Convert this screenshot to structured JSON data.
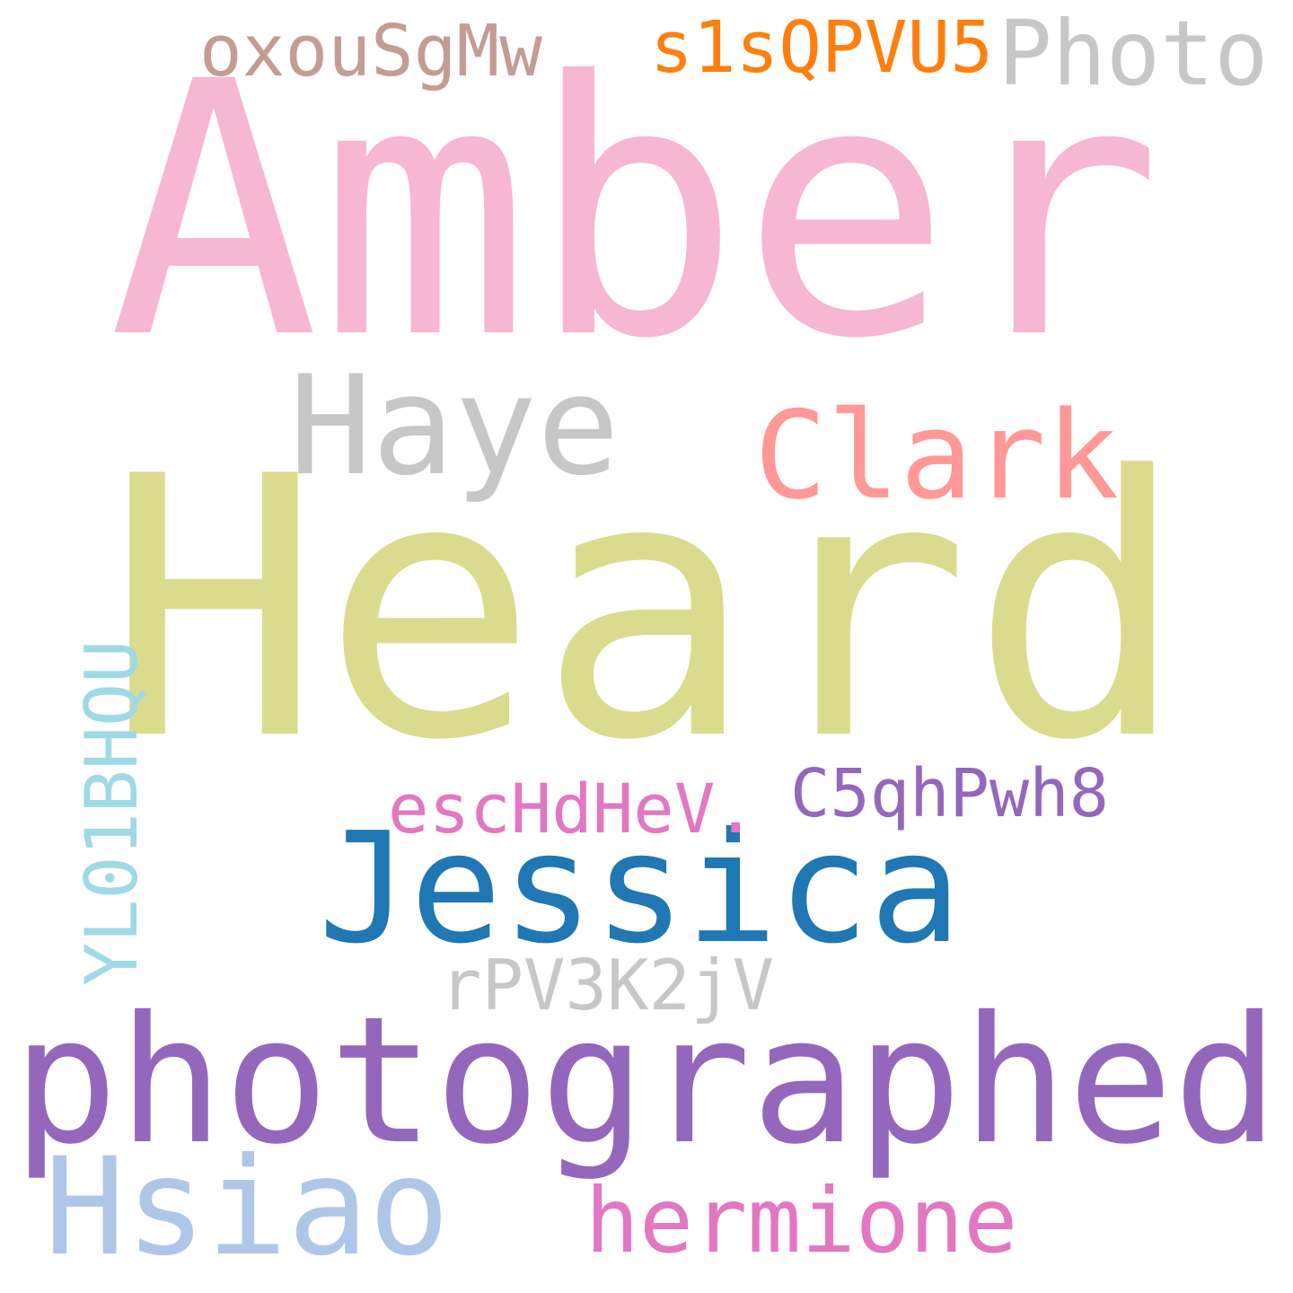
{
  "words": [
    {
      "text": "Amber",
      "color": "#f7b6d2"
    },
    {
      "text": "Heard",
      "color": "#dbdb8d"
    },
    {
      "text": "photographed",
      "color": "#9467bd"
    },
    {
      "text": "Jessica",
      "color": "#1f77b4"
    },
    {
      "text": "Haye",
      "color": "#c7c7c7"
    },
    {
      "text": "Clark",
      "color": "#ff9896"
    },
    {
      "text": "Hsiao",
      "color": "#aec7e8"
    },
    {
      "text": "hermione",
      "color": "#e377c2"
    },
    {
      "text": "Photo",
      "color": "#c7c7c7"
    },
    {
      "text": "s1sQPVU5",
      "color": "#ff7f0e"
    },
    {
      "text": "oxouSgMw",
      "color": "#c49c94"
    },
    {
      "text": "C5qhPwh8",
      "color": "#9467bd"
    },
    {
      "text": "escHdHeV.",
      "color": "#e377c2"
    },
    {
      "text": "rPV3K2jV",
      "color": "#c7c7c7"
    },
    {
      "text": "YL01BHQU",
      "color": "#9edae5"
    }
  ]
}
